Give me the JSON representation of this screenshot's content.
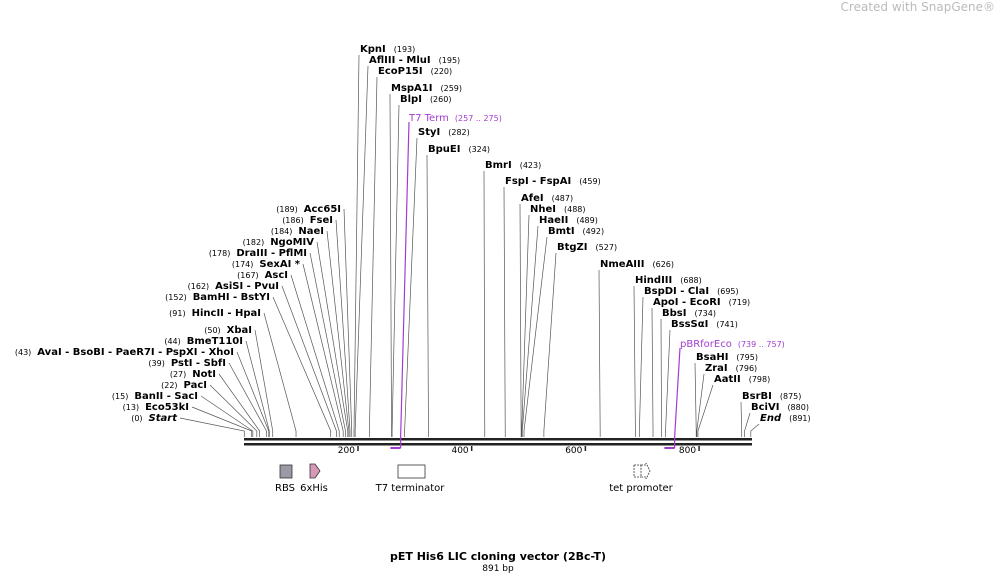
{
  "watermark": "Created with SnapGene®",
  "title": "pET His6 LIC cloning vector (2Bc-T)",
  "length": {
    "value": 891,
    "label": "891 bp"
  },
  "ruler_ticks": [
    200,
    400,
    600,
    800
  ],
  "enzymes": [
    {
      "name": "KpnI",
      "position": {
        "value": 193,
        "label": "(193)"
      }
    },
    {
      "name": "AflIII - MluI",
      "position": {
        "value": 195,
        "label": "(195)"
      }
    },
    {
      "name": "EcoP15I",
      "position": {
        "value": 220,
        "label": "(220)"
      }
    },
    {
      "name": "MspA1I",
      "position": {
        "value": 259,
        "label": "(259)"
      }
    },
    {
      "name": "BlpI",
      "position": {
        "value": 260,
        "label": "(260)"
      }
    },
    {
      "name": "StyI",
      "position": {
        "value": 282,
        "label": "(282)"
      }
    },
    {
      "name": "BpuEI",
      "position": {
        "value": 324,
        "label": "(324)"
      }
    },
    {
      "name": "BmrI",
      "position": {
        "value": 423,
        "label": "(423)"
      }
    },
    {
      "name": "FspI - FspAI",
      "position": {
        "value": 459,
        "label": "(459)"
      }
    },
    {
      "name": "AfeI",
      "position": {
        "value": 487,
        "label": "(487)"
      }
    },
    {
      "name": "NheI",
      "position": {
        "value": 488,
        "label": "(488)"
      }
    },
    {
      "name": "HaeII",
      "position": {
        "value": 489,
        "label": "(489)"
      }
    },
    {
      "name": "BmtI",
      "position": {
        "value": 492,
        "label": "(492)"
      }
    },
    {
      "name": "BtgZI",
      "position": {
        "value": 527,
        "label": "(527)"
      }
    },
    {
      "name": "NmeAIII",
      "position": {
        "value": 626,
        "label": "(626)"
      }
    },
    {
      "name": "HindIII",
      "position": {
        "value": 688,
        "label": "(688)"
      }
    },
    {
      "name": "BspDI - ClaI",
      "position": {
        "value": 695,
        "label": "(695)"
      }
    },
    {
      "name": "ApoI - EcoRI",
      "position": {
        "value": 719,
        "label": "(719)"
      }
    },
    {
      "name": "BbsI",
      "position": {
        "value": 734,
        "label": "(734)"
      }
    },
    {
      "name": "BssSαI",
      "position": {
        "value": 741,
        "label": "(741)"
      }
    },
    {
      "name": "BsaHI",
      "position": {
        "value": 795,
        "label": "(795)"
      }
    },
    {
      "name": "ZraI",
      "position": {
        "value": 796,
        "label": "(796)"
      }
    },
    {
      "name": "AatII",
      "position": {
        "value": 798,
        "label": "(798)"
      }
    },
    {
      "name": "BsrBI",
      "position": {
        "value": 875,
        "label": "(875)"
      }
    },
    {
      "name": "BciVI",
      "position": {
        "value": 880,
        "label": "(880)"
      }
    },
    {
      "name": "End",
      "position": {
        "value": 891,
        "label": "(891)"
      }
    },
    {
      "name": "Acc65I",
      "position": {
        "value": 189,
        "label": "(189)"
      }
    },
    {
      "name": "FseI",
      "position": {
        "value": 186,
        "label": "(186)"
      }
    },
    {
      "name": "NaeI",
      "position": {
        "value": 184,
        "label": "(184)"
      }
    },
    {
      "name": "NgoMIV",
      "position": {
        "value": 182,
        "label": "(182)"
      }
    },
    {
      "name": "DraIII - PflMI",
      "position": {
        "value": 178,
        "label": "(178)"
      }
    },
    {
      "name": "SexAI *",
      "position": {
        "value": 174,
        "label": "(174)"
      }
    },
    {
      "name": "AscI",
      "position": {
        "value": 167,
        "label": "(167)"
      }
    },
    {
      "name": "AsiSI - PvuI",
      "position": {
        "value": 162,
        "label": "(162)"
      }
    },
    {
      "name": "BamHI - BstYI",
      "position": {
        "value": 152,
        "label": "(152)"
      }
    },
    {
      "name": "HincII - HpaI",
      "position": {
        "value": 91,
        "label": "(91)"
      }
    },
    {
      "name": "XbaI",
      "position": {
        "value": 50,
        "label": "(50)"
      }
    },
    {
      "name": "BmeT110I",
      "position": {
        "value": 44,
        "label": "(44)"
      }
    },
    {
      "name": "AvaI - BsoBI - PaeR7I - PspXI - XhoI",
      "position": {
        "value": 43,
        "label": "(43)"
      }
    },
    {
      "name": "PstI - SbfI",
      "position": {
        "value": 39,
        "label": "(39)"
      }
    },
    {
      "name": "NotI",
      "position": {
        "value": 27,
        "label": "(27)"
      }
    },
    {
      "name": "PacI",
      "position": {
        "value": 22,
        "label": "(22)"
      }
    },
    {
      "name": "BanII - SacI",
      "position": {
        "value": 15,
        "label": "(15)"
      }
    },
    {
      "name": "Eco53kI",
      "position": {
        "value": 13,
        "label": "(13)"
      }
    },
    {
      "name": "Start",
      "position": {
        "value": 0,
        "label": "(0)"
      }
    }
  ],
  "primers": [
    {
      "name": "T7 Term",
      "range": {
        "start": 257,
        "end": 275,
        "label": "(257 .. 275)"
      }
    },
    {
      "name": "pBRforEco",
      "range": {
        "start": 739,
        "end": 757,
        "label": "(739 .. 757)"
      }
    }
  ],
  "features": [
    "RBS",
    "6xHis",
    "T7 terminator",
    "tet promoter"
  ]
}
